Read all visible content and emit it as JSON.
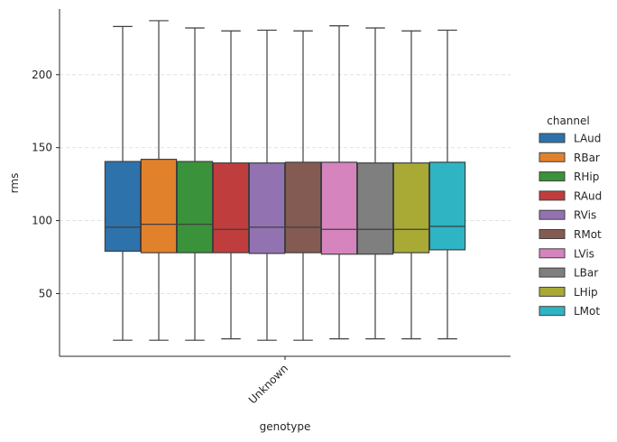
{
  "chart_data": {
    "type": "box",
    "xlabel": "genotype",
    "ylabel": "rms",
    "categories": [
      "Unknown"
    ],
    "ylim": [
      7,
      245
    ],
    "yticks": [
      50,
      100,
      150,
      200
    ],
    "grid": "horizontal dashed",
    "legend": {
      "title": "channel",
      "placement": "right"
    },
    "series": [
      {
        "name": "LAud",
        "color": "#2e72ab",
        "whisker_low": 18,
        "q1": 79,
        "median": 95.5,
        "q3": 140.5,
        "whisker_high": 233
      },
      {
        "name": "RBar",
        "color": "#e1812c",
        "whisker_low": 18,
        "q1": 78,
        "median": 97.5,
        "q3": 142,
        "whisker_high": 237
      },
      {
        "name": "RHip",
        "color": "#3a923a",
        "whisker_low": 18,
        "q1": 78,
        "median": 97.5,
        "q3": 140.5,
        "whisker_high": 232
      },
      {
        "name": "RAud",
        "color": "#c03d3e",
        "whisker_low": 19,
        "q1": 78,
        "median": 94,
        "q3": 139.5,
        "whisker_high": 230
      },
      {
        "name": "RVis",
        "color": "#9372b2",
        "whisker_low": 18,
        "q1": 77.5,
        "median": 95.5,
        "q3": 139.5,
        "whisker_high": 230.5
      },
      {
        "name": "RMot",
        "color": "#845b53",
        "whisker_low": 18,
        "q1": 78,
        "median": 95.5,
        "q3": 140,
        "whisker_high": 230
      },
      {
        "name": "LVis",
        "color": "#d684bd",
        "whisker_low": 19,
        "q1": 77,
        "median": 94,
        "q3": 140,
        "whisker_high": 233.5
      },
      {
        "name": "LBar",
        "color": "#7f7f7f",
        "whisker_low": 19,
        "q1": 77,
        "median": 94,
        "q3": 139.5,
        "whisker_high": 232
      },
      {
        "name": "LHip",
        "color": "#a9aa35",
        "whisker_low": 19,
        "q1": 78,
        "median": 94,
        "q3": 139.5,
        "whisker_high": 230
      },
      {
        "name": "LMot",
        "color": "#2eb4c3",
        "whisker_low": 19,
        "q1": 80,
        "median": 96,
        "q3": 140,
        "whisker_high": 230.5
      }
    ]
  }
}
